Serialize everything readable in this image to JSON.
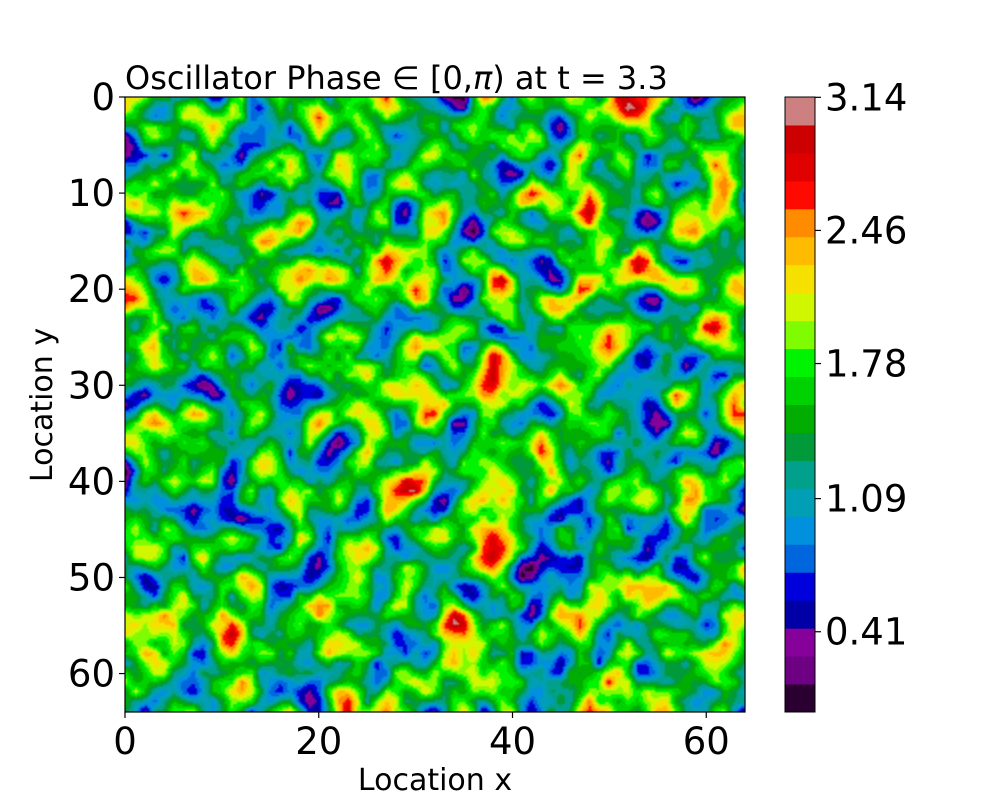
{
  "chart_data": {
    "type": "heatmap",
    "title_prefix": "Oscillator Phase ",
    "title_symbol": "∈",
    "title_range": " [0,",
    "title_pi": "π",
    "title_suffix": ") at t = 3.3",
    "xlabel": "Location x",
    "ylabel": "Location y",
    "xlim": [
      0,
      64
    ],
    "ylim": [
      0,
      64
    ],
    "y_inverted": true,
    "x_ticks": [
      "0",
      "20",
      "40",
      "60"
    ],
    "x_tick_values": [
      0,
      20,
      40,
      60
    ],
    "y_ticks": [
      "0",
      "10",
      "20",
      "30",
      "40",
      "50",
      "60"
    ],
    "y_tick_values": [
      0,
      10,
      20,
      30,
      40,
      50,
      60
    ],
    "grid": false,
    "colormap": "nipy_spectral",
    "value_range": [
      0,
      3.14159
    ],
    "levels": 18,
    "colorbar_ticks": [
      "3.14",
      "2.46",
      "1.78",
      "1.09",
      "0.41"
    ],
    "colorbar_tick_values": [
      3.14,
      2.46,
      1.78,
      1.09,
      0.41
    ],
    "colorbar_colors": [
      "#2a0030",
      "#6e0083",
      "#86009a",
      "#0000a6",
      "#0000dd",
      "#0066dd",
      "#0090dd",
      "#009fb5",
      "#00a08d",
      "#009a3a",
      "#00ad00",
      "#00d100",
      "#00f300",
      "#7ffc00",
      "#d1f700",
      "#f5e000",
      "#ffbb00",
      "#ff8b00",
      "#ff0a00",
      "#e10000",
      "#cc0000",
      "#cc8080"
    ]
  }
}
